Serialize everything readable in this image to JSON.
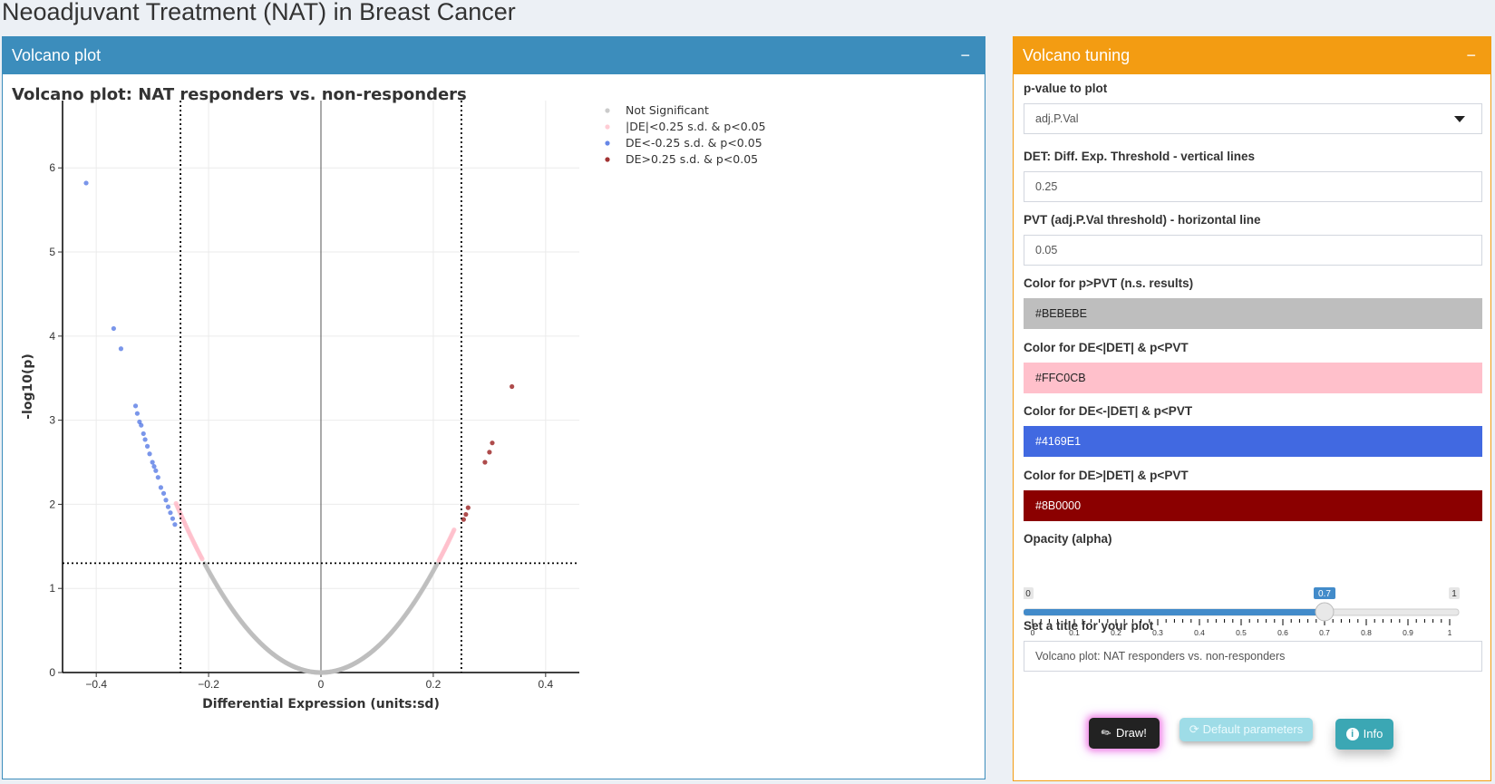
{
  "page": {
    "title": "Neoadjuvant Treatment (NAT) in Breast Cancer"
  },
  "left_box": {
    "title": "Volcano plot",
    "collapse": "−"
  },
  "right_box": {
    "title": "Volcano tuning",
    "collapse": "−"
  },
  "chart_data": {
    "type": "scatter",
    "title": "Volcano plot: NAT responders vs. non-responders",
    "xlabel": "Differential Expression (units:sd)",
    "ylabel": "-log10(p)",
    "xlim": [
      -0.46,
      0.46
    ],
    "ylim": [
      0,
      6.8
    ],
    "x_ticks": [
      -0.4,
      -0.2,
      0,
      0.2,
      0.4
    ],
    "x_tick_labels": [
      "−0.4",
      "−0.2",
      "0",
      "0.2",
      "0.4"
    ],
    "y_ticks": [
      0,
      1,
      2,
      3,
      4,
      5,
      6
    ],
    "y_tick_labels": [
      "0",
      "1",
      "2",
      "3",
      "4",
      "5",
      "6"
    ],
    "grid": true,
    "vlines": [
      -0.25,
      0.25
    ],
    "hline": 1.3,
    "legend_position": "top-right",
    "legend": [
      {
        "label": "Not Significant",
        "color": "#BEBEBE"
      },
      {
        "label": "|DE|<0.25 s.d. & p<0.05",
        "color": "#FFC0CB"
      },
      {
        "label": "DE<-0.25 s.d. & p<0.05",
        "color": "#4169E1"
      },
      {
        "label": "DE>0.25 s.d. & p<0.05",
        "color": "#8B0000"
      }
    ],
    "series": [
      {
        "name": "DE<-0.25 s.d. & p<0.05",
        "color": "#4169E1",
        "points": [
          [
            -0.418,
            5.82
          ],
          [
            -0.369,
            4.09
          ],
          [
            -0.356,
            3.85
          ],
          [
            -0.33,
            3.17
          ],
          [
            -0.327,
            3.08
          ],
          [
            -0.323,
            2.98
          ],
          [
            -0.32,
            2.94
          ],
          [
            -0.316,
            2.84
          ],
          [
            -0.313,
            2.77
          ],
          [
            -0.309,
            2.69
          ],
          [
            -0.305,
            2.6
          ],
          [
            -0.3,
            2.5
          ],
          [
            -0.297,
            2.45
          ],
          [
            -0.294,
            2.4
          ],
          [
            -0.29,
            2.32
          ],
          [
            -0.285,
            2.2
          ],
          [
            -0.28,
            2.13
          ],
          [
            -0.276,
            2.05
          ],
          [
            -0.272,
            1.97
          ],
          [
            -0.268,
            1.9
          ],
          [
            -0.264,
            1.83
          ],
          [
            -0.26,
            1.76
          ]
        ]
      },
      {
        "name": "DE>0.25 s.d. & p<0.05",
        "color": "#8B0000",
        "points": [
          [
            0.34,
            3.4
          ],
          [
            0.305,
            2.73
          ],
          [
            0.3,
            2.62
          ],
          [
            0.292,
            2.5
          ],
          [
            0.262,
            1.96
          ],
          [
            0.258,
            1.88
          ],
          [
            0.254,
            1.82
          ]
        ]
      }
    ]
  },
  "form": {
    "pvalue": {
      "label": "p-value to plot",
      "value": "adj.P.Val"
    },
    "det": {
      "label": "DET: Diff. Exp. Threshold - vertical lines",
      "value": "0.25"
    },
    "pvt": {
      "label": "PVT (adj.P.Val threshold) - horizontal line",
      "value": "0.05"
    },
    "color_ns": {
      "label": "Color for p>PVT (n.s. results)",
      "value": "#BEBEBE",
      "bg": "#BEBEBE",
      "fg": "#222222"
    },
    "color_small": {
      "label": "Color for DE<|DET| & p<PVT",
      "value": "#FFC0CB",
      "bg": "#FFC0CB",
      "fg": "#222222"
    },
    "color_neg": {
      "label": "Color for DE<-|DET| & p<PVT",
      "value": "#4169E1",
      "bg": "#4169E1",
      "fg": "#ffffff"
    },
    "color_pos": {
      "label": "Color for DE>|DET| & p<PVT",
      "value": "#8B0000",
      "bg": "#8B0000",
      "fg": "#ffffff"
    },
    "opacity": {
      "label": "Opacity (alpha)",
      "min_label": "0",
      "max_label": "1",
      "value": 0.7,
      "value_label": "0.7",
      "tick_labels": [
        "0",
        "0.1",
        "0.2",
        "0.3",
        "0.4",
        "0.5",
        "0.6",
        "0.7",
        "0.8",
        "0.9",
        "1"
      ]
    },
    "title_input": {
      "label": "Set a title for your plot",
      "value": "Volcano plot: NAT responders vs. non-responders"
    }
  },
  "buttons": {
    "draw": "Draw!",
    "default": "Default parameters",
    "info": "Info"
  }
}
